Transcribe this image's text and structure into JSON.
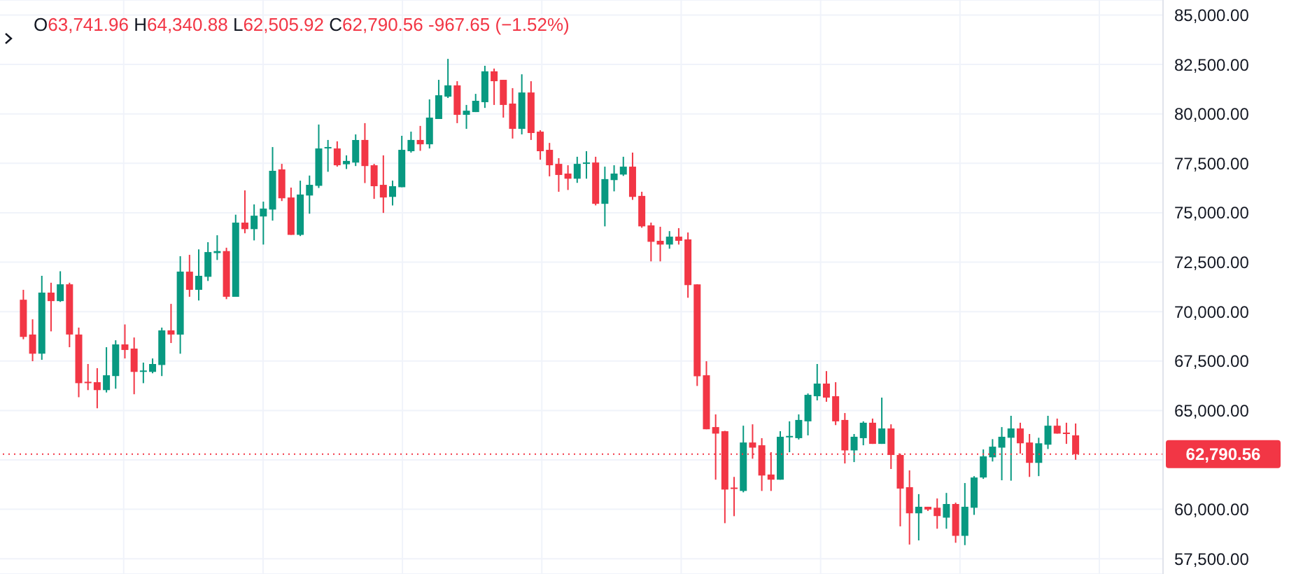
{
  "chart_data": {
    "type": "candlestick",
    "annotations": [
      "O63,741.96 H64,340.88 L62,505.92 C62,790.56 -967.65 (−1.52%)"
    ],
    "categories": [
      null,
      null,
      null,
      null,
      null,
      null,
      null,
      null,
      null,
      null,
      null,
      null,
      null,
      null,
      null,
      null,
      null,
      null,
      null,
      null,
      null,
      null,
      null,
      null,
      null,
      null,
      null,
      null,
      null,
      null,
      null,
      null,
      null,
      null,
      null,
      null,
      null,
      null,
      null,
      null,
      null,
      null,
      null,
      null,
      null,
      null,
      null,
      null,
      null,
      null,
      null,
      null,
      null,
      null,
      null,
      null,
      null,
      null,
      null,
      null,
      null,
      null,
      null,
      null,
      null,
      null,
      null,
      null,
      null,
      null,
      null,
      null,
      null,
      null,
      null,
      null,
      null,
      null,
      null,
      null,
      null,
      null,
      null,
      null,
      null,
      null,
      null,
      null,
      null,
      null,
      null,
      null,
      null,
      null,
      null,
      null,
      null,
      null,
      null,
      null,
      null,
      null,
      null,
      null,
      null,
      null,
      null,
      null,
      null,
      null,
      null,
      null,
      null,
      null,
      null,
      null,
      null,
      null,
      null,
      null,
      null,
      null,
      null,
      null,
      null,
      null
    ],
    "ohlc": [
      null,
      null,
      [
        70600,
        71100,
        68600,
        68720
      ],
      [
        68840,
        69610,
        67490,
        67870
      ],
      [
        67870,
        71810,
        67560,
        70960
      ],
      [
        70960,
        71460,
        69000,
        70530
      ],
      [
        70530,
        72040,
        70490,
        71380
      ],
      [
        71380,
        71460,
        68200,
        68840
      ],
      [
        68840,
        69190,
        65670,
        66380
      ],
      [
        66430,
        67350,
        66030,
        66380
      ],
      [
        66430,
        67140,
        65110,
        66030
      ],
      [
        66030,
        68200,
        65910,
        66780
      ],
      [
        66740,
        68550,
        66100,
        68340
      ],
      [
        68340,
        69350,
        67630,
        68060
      ],
      [
        68130,
        68690,
        65820,
        66950
      ],
      [
        66950,
        67420,
        66380,
        67000
      ],
      [
        66950,
        67630,
        66880,
        67350
      ],
      [
        67300,
        69190,
        66740,
        69050
      ],
      [
        69050,
        70390,
        68410,
        68840
      ],
      [
        68840,
        72800,
        67870,
        72020
      ],
      [
        72020,
        72870,
        70750,
        71100
      ],
      [
        71100,
        73150,
        70560,
        71810
      ],
      [
        71760,
        73510,
        71550,
        73010
      ],
      [
        72960,
        73860,
        72610,
        73060
      ],
      [
        73060,
        73230,
        70630,
        70750
      ],
      [
        70750,
        74900,
        70750,
        74500
      ],
      [
        74500,
        76130,
        73960,
        74170
      ],
      [
        74170,
        75420,
        73600,
        74850
      ],
      [
        74810,
        75560,
        73390,
        75210
      ],
      [
        75160,
        78320,
        74600,
        77120
      ],
      [
        77190,
        77470,
        75590,
        75730
      ],
      [
        75770,
        76270,
        73880,
        73880
      ],
      [
        73880,
        76620,
        73820,
        75920
      ],
      [
        75870,
        76880,
        74950,
        76410
      ],
      [
        76360,
        79460,
        76250,
        78250
      ],
      [
        78250,
        78680,
        77070,
        78300
      ],
      [
        78250,
        78610,
        77330,
        77400
      ],
      [
        77450,
        77900,
        77210,
        77620
      ],
      [
        77540,
        78960,
        77360,
        78680
      ],
      [
        78680,
        79530,
        76500,
        77360
      ],
      [
        77400,
        77470,
        75700,
        76340
      ],
      [
        76410,
        77900,
        74990,
        75770
      ],
      [
        75800,
        76620,
        75370,
        76340
      ],
      [
        76290,
        78890,
        76290,
        78180
      ],
      [
        78110,
        79100,
        78040,
        78680
      ],
      [
        78680,
        79390,
        78130,
        78460
      ],
      [
        78460,
        80730,
        78250,
        79810
      ],
      [
        79740,
        81720,
        79740,
        80940
      ],
      [
        80870,
        82780,
        80800,
        81440
      ],
      [
        81440,
        81650,
        79530,
        79950
      ],
      [
        79950,
        80450,
        79240,
        80160
      ],
      [
        80090,
        81010,
        80090,
        80660
      ],
      [
        80590,
        82430,
        80300,
        82150
      ],
      [
        82150,
        82290,
        80450,
        81650
      ],
      [
        81720,
        81720,
        79810,
        80450
      ],
      [
        80520,
        81300,
        78750,
        79240
      ],
      [
        79240,
        82000,
        78960,
        81080
      ],
      [
        81080,
        81650,
        78680,
        79030
      ],
      [
        79100,
        79170,
        77680,
        78110
      ],
      [
        78180,
        78530,
        76840,
        77400
      ],
      [
        77470,
        77760,
        76060,
        76910
      ],
      [
        76980,
        77400,
        76150,
        76720
      ],
      [
        76720,
        77830,
        76510,
        77470
      ],
      [
        77470,
        78110,
        76720,
        77540
      ],
      [
        77540,
        77830,
        75370,
        75450
      ],
      [
        75450,
        77330,
        74310,
        76700
      ],
      [
        76650,
        77400,
        76080,
        76980
      ],
      [
        76930,
        77830,
        76860,
        77330
      ],
      [
        77330,
        78040,
        75650,
        75800
      ],
      [
        75850,
        76060,
        74240,
        74310
      ],
      [
        74360,
        74500,
        72540,
        73530
      ],
      [
        73580,
        74290,
        72540,
        73390
      ],
      [
        73390,
        74070,
        73180,
        73790
      ],
      [
        73790,
        74220,
        73390,
        73580
      ],
      [
        73650,
        74000,
        70700,
        71340
      ],
      [
        71380,
        71380,
        66240,
        66730
      ],
      [
        66780,
        67490,
        64050,
        64050
      ],
      [
        64160,
        64800,
        61500,
        63830
      ],
      [
        63950,
        63970,
        59300,
        61000
      ],
      [
        61070,
        61640,
        59655,
        61030
      ],
      [
        60930,
        64230,
        60860,
        63380
      ],
      [
        63380,
        64300,
        62560,
        63120
      ],
      [
        63240,
        63600,
        60930,
        61710
      ],
      [
        61760,
        62890,
        60930,
        61500
      ],
      [
        61500,
        63950,
        61500,
        63670
      ],
      [
        63640,
        64450,
        62890,
        63670
      ],
      [
        63600,
        64800,
        63530,
        64520
      ],
      [
        64450,
        65860,
        63740,
        65790
      ],
      [
        65720,
        67350,
        65510,
        66360
      ],
      [
        66360,
        66990,
        65440,
        65650
      ],
      [
        65720,
        66430,
        64260,
        64450
      ],
      [
        64520,
        64870,
        62320,
        62980
      ],
      [
        62980,
        63810,
        62390,
        63670
      ],
      [
        63600,
        64450,
        63240,
        64380
      ],
      [
        64380,
        64590,
        63310,
        63310
      ],
      [
        63310,
        65650,
        63310,
        64090
      ],
      [
        64090,
        64300,
        62040,
        62750
      ],
      [
        62750,
        62820,
        59140,
        61050
      ],
      [
        61120,
        61970,
        58220,
        59800
      ],
      [
        59800,
        60770,
        58430,
        60130
      ],
      [
        60130,
        60130,
        59920,
        59990
      ],
      [
        60080,
        60550,
        59020,
        59660
      ],
      [
        59580,
        60830,
        59020,
        60270
      ],
      [
        60270,
        60340,
        58310,
        58660
      ],
      [
        58660,
        61330,
        58190,
        60130
      ],
      [
        60080,
        61680,
        59720,
        61610
      ],
      [
        61610,
        63030,
        61540,
        62680
      ],
      [
        62630,
        63550,
        62420,
        63170
      ],
      [
        63120,
        64160,
        61470,
        63670
      ],
      [
        63620,
        64730,
        61450,
        64090
      ],
      [
        64090,
        64380,
        62820,
        63340
      ],
      [
        63380,
        63810,
        61640,
        62350
      ],
      [
        62350,
        63620,
        61680,
        63340
      ],
      [
        63270,
        64730,
        63050,
        64230
      ],
      [
        64230,
        64590,
        63830,
        63830
      ],
      [
        63880,
        64380,
        63310,
        63810
      ],
      [
        63741.96,
        64340.88,
        62505.92,
        62790.56
      ],
      null,
      null,
      null,
      null,
      null,
      null,
      null,
      null,
      null
    ],
    "colors": [
      null,
      null,
      "#f23645",
      "#f23645",
      "#089981",
      "#f23645",
      "#089981",
      "#f23645",
      "#f23645",
      "#f23645",
      "#f23645",
      "#089981",
      "#089981",
      "#f23645",
      "#f23645",
      "#089981",
      "#089981",
      "#089981",
      "#f23645",
      "#089981",
      "#f23645",
      "#089981",
      "#089981",
      "#089981",
      "#f23645",
      "#089981",
      "#f23645",
      "#089981",
      "#089981",
      "#089981",
      "#f23645",
      "#f23645",
      "#089981",
      "#089981",
      "#089981",
      "#089981",
      "#f23645",
      "#089981",
      "#089981",
      "#f23645",
      "#f23645",
      "#f23645",
      "#089981",
      "#089981",
      "#089981",
      "#f23645",
      "#089981",
      "#089981",
      "#089981",
      "#f23645",
      "#089981",
      "#089981",
      "#089981",
      "#f23645",
      "#f23645",
      "#f23645",
      "#089981",
      "#f23645",
      "#f23645",
      "#f23645",
      "#f23645",
      "#f23645",
      "#089981",
      "#089981",
      "#f23645",
      "#089981",
      "#089981",
      "#089981",
      "#f23645",
      "#f23645",
      "#f23645",
      "#f23645",
      "#089981",
      "#f23645",
      "#f23645",
      "#f23645",
      "#f23645",
      "#f23645",
      "#f23645",
      "#f23645",
      "#089981",
      "#f23645",
      "#f23645",
      "#f23645",
      "#089981",
      "#089981",
      "#089981",
      "#089981",
      "#089981",
      "#f23645",
      "#f23645",
      "#f23645",
      "#089981",
      "#089981",
      "#f23645",
      "#089981",
      "#f23645",
      "#f23645",
      "#f23645",
      "#089981",
      "#f23645",
      "#f23645",
      "#089981",
      "#f23645",
      "#089981",
      "#089981",
      "#089981",
      "#089981",
      "#089981",
      "#089981",
      "#f23645",
      "#f23645",
      "#089981",
      "#089981",
      "#f23645",
      "#f23645",
      "#f23645",
      null,
      null,
      null,
      null,
      null,
      null,
      null,
      null,
      null
    ],
    "ylim": [
      56730,
      85757
    ],
    "yticks": [
      {
        "value": 57500,
        "label": "57,500.00"
      },
      {
        "value": 60000,
        "label": "60,000.00"
      },
      {
        "value": 62500,
        "label": null
      },
      {
        "value": 65000,
        "label": "65,000.00"
      },
      {
        "value": 67500,
        "label": "67,500.00"
      },
      {
        "value": 70000,
        "label": "70,000.00"
      },
      {
        "value": 72500,
        "label": "72,500.00"
      },
      {
        "value": 75000,
        "label": "75,000.00"
      },
      {
        "value": 77500,
        "label": "77,500.00"
      },
      {
        "value": 80000,
        "label": "80,000.00"
      },
      {
        "value": 82500,
        "label": "82,500.00"
      },
      {
        "value": 85000,
        "label": "85,000.00"
      }
    ],
    "ref_lines": [
      {
        "axis": "y",
        "value": 62790.56,
        "label": "62,790.56",
        "color": "#f23645",
        "line_style": "dotted"
      }
    ],
    "grid": true,
    "tick_labels": "y"
  }
}
